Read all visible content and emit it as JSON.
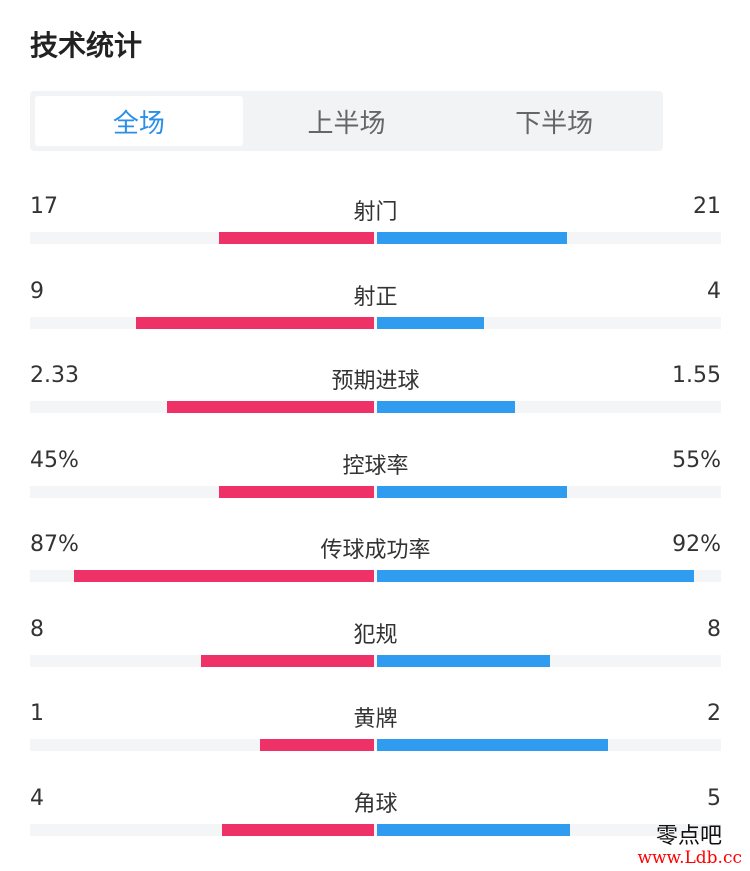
{
  "header": {
    "title": "技术统计"
  },
  "tabs": [
    {
      "label": "全场",
      "active": true
    },
    {
      "label": "上半场",
      "active": false
    },
    {
      "label": "下半场",
      "active": false
    }
  ],
  "colors": {
    "left_team": "#ee3166",
    "right_team": "#2f9cf0",
    "active_tab": "#2b8fe8"
  },
  "stats": [
    {
      "name": "射门",
      "left": "17",
      "right": "21",
      "left_fill": 0.45,
      "right_fill": 0.55
    },
    {
      "name": "射正",
      "left": "9",
      "right": "4",
      "left_fill": 0.69,
      "right_fill": 0.31
    },
    {
      "name": "预期进球",
      "left": "2.33",
      "right": "1.55",
      "left_fill": 0.6,
      "right_fill": 0.4
    },
    {
      "name": "控球率",
      "left": "45%",
      "right": "55%",
      "left_fill": 0.45,
      "right_fill": 0.55
    },
    {
      "name": "传球成功率",
      "left": "87%",
      "right": "92%",
      "left_fill": 0.87,
      "right_fill": 0.92
    },
    {
      "name": "犯规",
      "left": "8",
      "right": "8",
      "left_fill": 0.5,
      "right_fill": 0.5
    },
    {
      "name": "黄牌",
      "left": "1",
      "right": "2",
      "left_fill": 0.33,
      "right_fill": 0.67
    },
    {
      "name": "角球",
      "left": "4",
      "right": "5",
      "left_fill": 0.44,
      "right_fill": 0.56
    }
  ],
  "watermark": {
    "line1": "零点吧",
    "line2": "www.Ldb.cc"
  }
}
